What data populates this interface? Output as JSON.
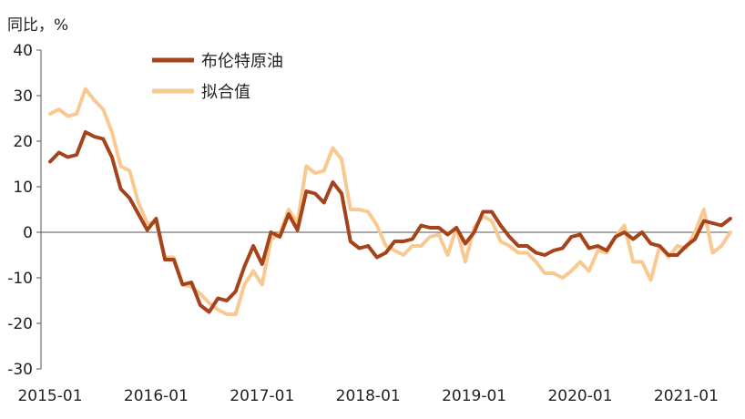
{
  "chart_data": {
    "type": "line",
    "title": "",
    "ylabel": "同比，%",
    "xlabel": "",
    "ylim": [
      -30,
      40
    ],
    "yticks": [
      -30,
      -20,
      -10,
      0,
      10,
      20,
      30,
      40
    ],
    "x_start": "2015-01",
    "xtick_labels": [
      "2015-01",
      "2016-01",
      "2017-01",
      "2018-01",
      "2019-01",
      "2020-01",
      "2021-01"
    ],
    "legend_position": "top-left",
    "grid": false,
    "series": [
      {
        "name": "布伦特原油",
        "color": "#A5431B",
        "values": [
          15.5,
          17.5,
          16.5,
          17,
          22,
          21,
          20.5,
          16.5,
          9.5,
          7.5,
          4,
          0.5,
          3,
          -6,
          -6,
          -11.5,
          -11,
          -16,
          -17.5,
          -14.5,
          -15,
          -13,
          -7.5,
          -3,
          -7,
          0,
          -1,
          4,
          0.5,
          9,
          8.5,
          6.5,
          11,
          8.5,
          -2,
          -3.5,
          -3,
          -5.5,
          -4.5,
          -2,
          -2,
          -1.5,
          1.5,
          1,
          1,
          -0.5,
          1,
          -2.5,
          0,
          4.5,
          4.5,
          1.5,
          -1,
          -3,
          -3,
          -4.5,
          -5,
          -4,
          -3.5,
          -1,
          -0.5,
          -3.5,
          -3,
          -4,
          -1,
          0,
          -1.5,
          0,
          -2.5,
          -3,
          -5,
          -5,
          -3,
          -1.5,
          2.5,
          2,
          1.5,
          3
        ]
      },
      {
        "name": "拟合值",
        "color": "#F9C992",
        "values": [
          26,
          27,
          25.5,
          26,
          31.5,
          29,
          27,
          22,
          14.5,
          13.5,
          6.5,
          2,
          2,
          -5.5,
          -5.5,
          -11.5,
          -12,
          -13.5,
          -15.5,
          -17,
          -18,
          -18,
          -11.5,
          -8.5,
          -11.5,
          -1.5,
          -0.5,
          5,
          2,
          14.5,
          13,
          13.5,
          18.5,
          16,
          5,
          5,
          4.5,
          1.5,
          -3,
          -4,
          -5,
          -3,
          -3,
          -1,
          -0.5,
          -5,
          1,
          -6.5,
          1,
          3.5,
          2.5,
          -2,
          -3,
          -4.5,
          -4.5,
          -6.5,
          -9,
          -9,
          -10,
          -8.5,
          -6.5,
          -8.5,
          -4,
          -4.5,
          -1,
          1.5,
          -6.5,
          -6.5,
          -10.5,
          -3,
          -5.5,
          -3,
          -3.5,
          0,
          5,
          -4.5,
          -3,
          0
        ]
      }
    ]
  }
}
